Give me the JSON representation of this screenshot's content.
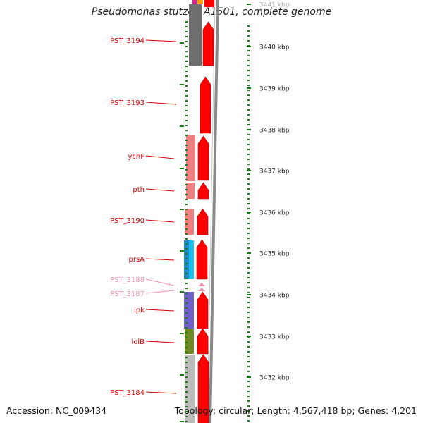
{
  "title": "Pseudomonas stutzeri A1501, complete genome",
  "footer": {
    "accession": "Accession: NC_009434",
    "topology": "Topology: circular; Length: 4,567,418 bp; Genes: 4,201"
  },
  "scale": {
    "unit": "kbp",
    "labels": [
      "3441 kbp",
      "3440 kbp",
      "3439 kbp",
      "3438 kbp",
      "3437 kbp",
      "3436 kbp",
      "3435 kbp",
      "3434 kbp",
      "3433 kbp",
      "3432 kbp"
    ]
  },
  "genes": [
    {
      "label": "PST_3194",
      "color": "#d40000"
    },
    {
      "label": "PST_3193",
      "color": "#d40000"
    },
    {
      "label": "ychF",
      "color": "#d40000"
    },
    {
      "label": "pth",
      "color": "#d40000"
    },
    {
      "label": "PST_3190",
      "color": "#d40000"
    },
    {
      "label": "prsA",
      "color": "#d40000"
    },
    {
      "label": "PST_3188",
      "color": "#f48fb1"
    },
    {
      "label": "PST_3187",
      "color": "#f48fb1"
    },
    {
      "label": "ipk",
      "color": "#d40000"
    },
    {
      "label": "lolB",
      "color": "#d40000"
    },
    {
      "label": "PST_3184",
      "color": "#d40000"
    }
  ],
  "colors": {
    "cds": "#ff0000",
    "tick": "#1a7a1a",
    "cog_gray": "#6e6e6e",
    "cog_salmon": "#f08080",
    "cog_blue": "#1e88c8",
    "cog_cyan": "#18bff0",
    "cog_purple": "#6f5fc8",
    "cog_olive": "#6f8a22",
    "cog_lightgray": "#bdbdbd",
    "backbone": "#8a8a8a"
  }
}
